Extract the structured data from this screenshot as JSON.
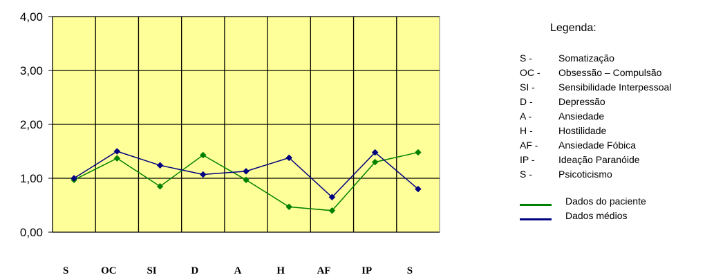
{
  "chart_data": {
    "type": "line",
    "categories": [
      "S",
      "OC",
      "SI",
      "D",
      "A",
      "H",
      "AF",
      "IP",
      "S"
    ],
    "ylim": [
      0,
      4
    ],
    "yticks": [
      "0,00",
      "1,00",
      "2,00",
      "3,00",
      "4,00"
    ],
    "grid": true,
    "plot_background": "#FFFF99",
    "series": [
      {
        "name": "Dados do paciente",
        "color": "#008000",
        "marker": "diamond",
        "values": [
          0.97,
          1.37,
          0.85,
          1.43,
          0.97,
          0.47,
          0.4,
          1.3,
          1.48
        ]
      },
      {
        "name": "Dados médios",
        "color": "#000080",
        "marker": "diamond",
        "values": [
          1.0,
          1.5,
          1.24,
          1.07,
          1.13,
          1.38,
          0.65,
          1.48,
          0.8
        ]
      }
    ],
    "legend_position": "right"
  },
  "legend": {
    "title": "Legenda:",
    "items": [
      {
        "code": "S -",
        "name": "Somatização"
      },
      {
        "code": "OC -",
        "name": "Obsessão – Compulsão"
      },
      {
        "code": "SI -",
        "name": "Sensibilidade Interpessoal"
      },
      {
        "code": "D -",
        "name": "Depressão"
      },
      {
        "code": "A -",
        "name": "Ansiedade"
      },
      {
        "code": "H -",
        "name": "Hostilidade"
      },
      {
        "code": "AF -",
        "name": "Ansiedade Fóbica"
      },
      {
        "code": "IP -",
        "name": "Ideação Paranóide"
      },
      {
        "code": "S -",
        "name": "Psicoticismo"
      }
    ]
  }
}
